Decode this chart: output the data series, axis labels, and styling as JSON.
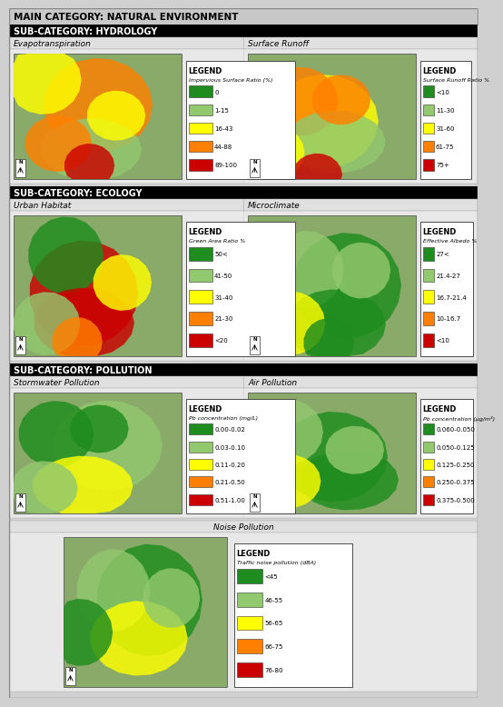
{
  "main_title": "MAIN CATEGORY: NATURAL ENVIRONMENT",
  "sections": [
    {
      "title": "SUB-CATEGORY: HYDROLOGY",
      "panels": [
        {
          "title": "Evapotranspiration",
          "legend_title": "LEGEND",
          "legend_subtitle": "Impervious Surface Ratio (%)",
          "legend_items": [
            {
              "color": "#1e8c1e",
              "label": "0"
            },
            {
              "color": "#92c86e",
              "label": "1-15"
            },
            {
              "color": "#ffff00",
              "label": "16-43"
            },
            {
              "color": "#ff8000",
              "label": "44-88"
            },
            {
              "color": "#cc0000",
              "label": "89-100"
            }
          ],
          "map_style": "hydrology_left"
        },
        {
          "title": "Surface Runoff",
          "legend_title": "LEGEND",
          "legend_subtitle": "Surface Runoff Ratio %",
          "legend_items": [
            {
              "color": "#1e8c1e",
              "label": "<10"
            },
            {
              "color": "#92c86e",
              "label": "11-30"
            },
            {
              "color": "#ffff00",
              "label": "31-60"
            },
            {
              "color": "#ff8000",
              "label": "61-75"
            },
            {
              "color": "#cc0000",
              "label": "75+"
            }
          ],
          "map_style": "hydrology_right"
        }
      ]
    },
    {
      "title": "SUB-CATEGORY: ECOLOGY",
      "panels": [
        {
          "title": "Urban Habitat",
          "legend_title": "LEGEND",
          "legend_subtitle": "Green Area Ratio %",
          "legend_items": [
            {
              "color": "#1e8c1e",
              "label": "50<"
            },
            {
              "color": "#92c86e",
              "label": "41-50"
            },
            {
              "color": "#ffff00",
              "label": "31-40"
            },
            {
              "color": "#ff8000",
              "label": "21-30"
            },
            {
              "color": "#cc0000",
              "label": "<20"
            }
          ],
          "map_style": "ecology_left"
        },
        {
          "title": "Microclimate",
          "legend_title": "LEGEND",
          "legend_subtitle": "Effective Albedo %",
          "legend_items": [
            {
              "color": "#1e8c1e",
              "label": "27<"
            },
            {
              "color": "#92c86e",
              "label": "21.4-27"
            },
            {
              "color": "#ffff00",
              "label": "16.7-21.4"
            },
            {
              "color": "#ff8000",
              "label": "10-16.7"
            },
            {
              "color": "#cc0000",
              "label": "<10"
            }
          ],
          "map_style": "ecology_right"
        }
      ]
    },
    {
      "title": "SUB-CATEGORY: POLLUTION",
      "panels": [
        {
          "title": "Stormwater Pollution",
          "legend_title": "LEGEND",
          "legend_subtitle": "Pb concentration (mg/L)",
          "legend_items": [
            {
              "color": "#1e8c1e",
              "label": "0.00-0.02"
            },
            {
              "color": "#92c86e",
              "label": "0.03-0.10"
            },
            {
              "color": "#ffff00",
              "label": "0.11-0.20"
            },
            {
              "color": "#ff8000",
              "label": "0.21-0.50"
            },
            {
              "color": "#cc0000",
              "label": "0.51-1.00"
            }
          ],
          "map_style": "pollution_left"
        },
        {
          "title": "Air Pollution",
          "legend_title": "LEGEND",
          "legend_subtitle": "Pb concentration (μg/m³)",
          "legend_items": [
            {
              "color": "#1e8c1e",
              "label": "0.060-0.050"
            },
            {
              "color": "#92c86e",
              "label": "0.050-0.125"
            },
            {
              "color": "#ffff00",
              "label": "0.125-0.250"
            },
            {
              "color": "#ff8000",
              "label": "0.250-0.375"
            },
            {
              "color": "#cc0000",
              "label": "0.375-0.500"
            }
          ],
          "map_style": "pollution_right"
        }
      ]
    }
  ],
  "bottom_panel": {
    "title": "Noise Pollution",
    "legend_title": "LEGEND",
    "legend_subtitle": "Traffic noise pollution (dBA)",
    "legend_items": [
      {
        "color": "#1e8c1e",
        "label": "<45"
      },
      {
        "color": "#92c86e",
        "label": "46-55"
      },
      {
        "color": "#ffff00",
        "label": "56-65"
      },
      {
        "color": "#ff8000",
        "label": "66-75"
      },
      {
        "color": "#cc0000",
        "label": "76-80"
      }
    ],
    "map_style": "noise"
  },
  "bg_color": "#d0d0d0",
  "header_bg": "#c8c8c8",
  "subcat_bg": "#000000",
  "panel_title_bg": "#e0e0e0",
  "panel_bg": "#e8e8e8"
}
